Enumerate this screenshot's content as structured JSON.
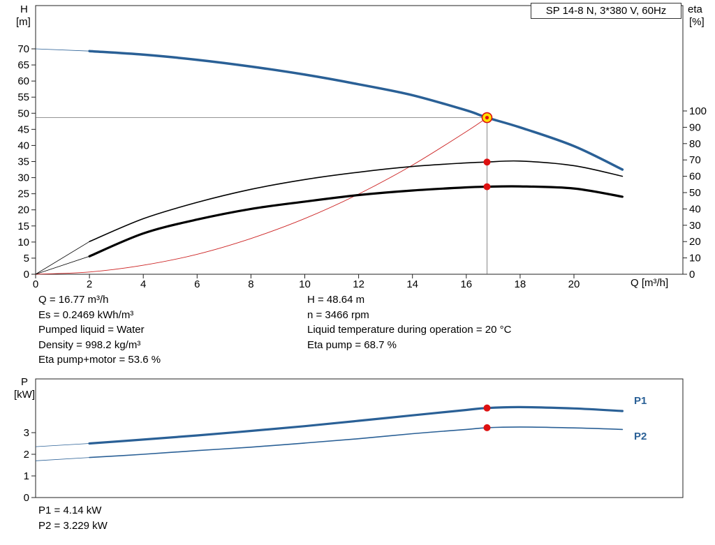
{
  "title_box": {
    "label": "SP 14-8 N, 3*380 V, 60Hz"
  },
  "labels": {
    "h_axis": "H",
    "h_unit": "[m]",
    "eta_axis": "eta",
    "eta_unit": "[%]",
    "q_axis": "Q [m³/h]",
    "p_axis": "P",
    "p_unit": "[kW]",
    "p1": "P1",
    "p2": "P2"
  },
  "info": {
    "left": [
      "Q = 16.77 m³/h",
      "Es = 0.2469 kWh/m³",
      "Pumped liquid = Water",
      "Density = 998.2 kg/m³",
      "Eta pump+motor = 53.6 %"
    ],
    "right": [
      "H = 48.64 m",
      "n = 3466 rpm",
      "Liquid temperature during operation = 20 °C",
      "Eta pump = 68.7 %"
    ]
  },
  "power_lines": [
    "P1 = 4.14 kW",
    "P2 = 3.229 kW"
  ],
  "colors": {
    "curve_blue": "#2a6096",
    "curve_black": "#000000",
    "curve_red": "#cc2222",
    "dot_red": "#dd1111",
    "op_yellow": "#ffe000",
    "crosshair": "#555555"
  },
  "chart_data": [
    {
      "id": "head-efficiency-chart",
      "type": "line",
      "title": "SP 14-8 N, 3*380 V, 60Hz",
      "xlabel": "Q [m³/h]",
      "ylabel_left": "H [m]",
      "ylabel_right": "eta [%]",
      "x_ticks": [
        0,
        2,
        4,
        6,
        8,
        10,
        12,
        14,
        16,
        18,
        20
      ],
      "y_left_ticks": [
        0,
        5,
        10,
        15,
        20,
        25,
        30,
        35,
        40,
        45,
        50,
        55,
        60,
        65,
        70
      ],
      "y_right_ticks": [
        0,
        10,
        20,
        30,
        40,
        50,
        60,
        70,
        80,
        90,
        100
      ],
      "x_range": [
        0,
        24
      ],
      "y_left_range": [
        0,
        83.5
      ],
      "y_right_range": [
        0,
        164.5
      ],
      "grid": false,
      "legend": "none",
      "series": [
        {
          "name": "system-curve",
          "axis": "left",
          "color": "red",
          "width": 0.9,
          "points": [
            [
              0,
              0
            ],
            [
              2,
              0.7
            ],
            [
              4,
              2.8
            ],
            [
              6,
              6.2
            ],
            [
              8,
              11.1
            ],
            [
              10,
              17.3
            ],
            [
              12,
              24.9
            ],
            [
              14,
              33.9
            ],
            [
              16,
              44.3
            ],
            [
              16.77,
              48.64
            ]
          ]
        },
        {
          "name": "pump-head-curve",
          "axis": "left",
          "color": "blue",
          "width": 3.5,
          "thin_until": 1.8,
          "points": [
            [
              0,
              70
            ],
            [
              2,
              69.3
            ],
            [
              4,
              68.2
            ],
            [
              6,
              66.6
            ],
            [
              8,
              64.5
            ],
            [
              10,
              62.0
            ],
            [
              12,
              59.0
            ],
            [
              14,
              55.6
            ],
            [
              16,
              50.9
            ],
            [
              16.77,
              48.64
            ],
            [
              18,
              45.6
            ],
            [
              20,
              39.8
            ],
            [
              21.8,
              32.5
            ]
          ]
        },
        {
          "name": "eta-pump-curve",
          "axis": "right",
          "color": "black",
          "width": 1.6,
          "thin_until": 2,
          "points": [
            [
              0,
              0
            ],
            [
              2,
              20
            ],
            [
              4,
              34
            ],
            [
              6,
              44
            ],
            [
              8,
              52
            ],
            [
              10,
              58
            ],
            [
              12,
              62.5
            ],
            [
              14,
              66
            ],
            [
              16,
              68.2
            ],
            [
              16.77,
              68.7
            ],
            [
              18,
              69.3
            ],
            [
              20,
              66.5
            ],
            [
              21.8,
              60
            ]
          ]
        },
        {
          "name": "eta-pump-motor-curve",
          "axis": "right",
          "color": "black",
          "width": 3.2,
          "thin_until": 2,
          "points": [
            [
              0,
              0
            ],
            [
              2,
              11
            ],
            [
              4,
              25
            ],
            [
              6,
              33.5
            ],
            [
              8,
              40
            ],
            [
              10,
              44.5
            ],
            [
              12,
              48.5
            ],
            [
              14,
              51.3
            ],
            [
              16,
              53.2
            ],
            [
              16.77,
              53.6
            ],
            [
              18,
              53.8
            ],
            [
              20,
              52.5
            ],
            [
              21.8,
              47.5
            ]
          ]
        }
      ],
      "operating_point": {
        "q": 16.77,
        "h": 48.64
      },
      "markers": [
        {
          "name": "eta-pump-point",
          "axis": "right",
          "x": 16.77,
          "y": 68.7
        },
        {
          "name": "eta-pump-motor-point",
          "axis": "right",
          "x": 16.77,
          "y": 53.6
        }
      ]
    },
    {
      "id": "power-chart",
      "type": "line",
      "ylabel_left": "P [kW]",
      "y_left_ticks": [
        0,
        1,
        2,
        3
      ],
      "x_range": [
        0,
        24
      ],
      "y_left_range": [
        0,
        5.5
      ],
      "grid": false,
      "legend": "right-inline",
      "series": [
        {
          "name": "P1",
          "axis": "left",
          "color": "blue",
          "width": 3.2,
          "thin_until": 1.8,
          "points": [
            [
              0,
              2.35
            ],
            [
              2,
              2.5
            ],
            [
              4,
              2.68
            ],
            [
              6,
              2.87
            ],
            [
              8,
              3.08
            ],
            [
              10,
              3.3
            ],
            [
              12,
              3.55
            ],
            [
              14,
              3.8
            ],
            [
              16,
              4.05
            ],
            [
              16.77,
              4.14
            ],
            [
              18,
              4.18
            ],
            [
              20,
              4.12
            ],
            [
              21.8,
              4.0
            ]
          ]
        },
        {
          "name": "P2",
          "axis": "left",
          "color": "blue",
          "width": 1.6,
          "thin_until": 1.8,
          "points": [
            [
              0,
              1.7
            ],
            [
              2,
              1.85
            ],
            [
              4,
              2.0
            ],
            [
              6,
              2.17
            ],
            [
              8,
              2.33
            ],
            [
              10,
              2.52
            ],
            [
              12,
              2.72
            ],
            [
              14,
              2.95
            ],
            [
              16,
              3.15
            ],
            [
              16.77,
              3.229
            ],
            [
              18,
              3.26
            ],
            [
              20,
              3.22
            ],
            [
              21.8,
              3.15
            ]
          ]
        }
      ],
      "markers": [
        {
          "name": "P1-point",
          "axis": "left",
          "x": 16.77,
          "y": 4.14
        },
        {
          "name": "P2-point",
          "axis": "left",
          "x": 16.77,
          "y": 3.229
        }
      ]
    }
  ]
}
